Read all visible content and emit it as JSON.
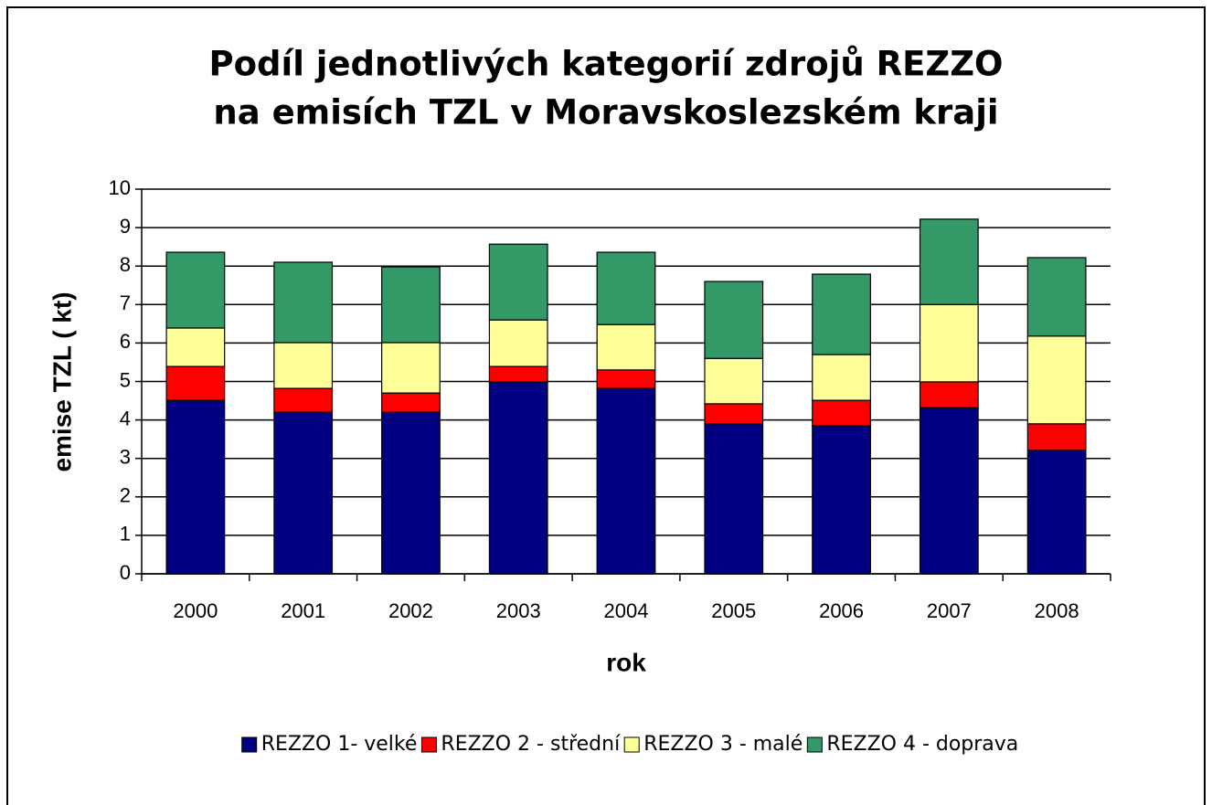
{
  "chart_data": {
    "type": "stacked_bar",
    "title": [
      "Podíl jednotlivých kategorií zdrojů REZZO",
      "na emisích TZL v Moravskoslezském kraji"
    ],
    "x_label": "rok",
    "y_label": "emise TZL  ( kt)",
    "categories": [
      "2000",
      "2001",
      "2002",
      "2003",
      "2004",
      "2005",
      "2006",
      "2007",
      "2008"
    ],
    "series": [
      {
        "name": "REZZO 1- velké",
        "color": "#000080",
        "values": [
          4.51,
          4.2,
          4.2,
          4.99,
          4.82,
          3.9,
          3.85,
          4.32,
          3.21
        ]
      },
      {
        "name": "REZZO 2 - střední",
        "color": "#ff0000",
        "values": [
          0.88,
          0.62,
          0.5,
          0.4,
          0.48,
          0.52,
          0.66,
          0.67,
          0.69
        ]
      },
      {
        "name": "REZZO 3 - malé",
        "color": "#ffff99",
        "values": [
          1.0,
          1.19,
          1.31,
          1.21,
          1.18,
          1.18,
          1.19,
          2.01,
          2.28
        ]
      },
      {
        "name": "REZZO 4 - doprava",
        "color": "#339966",
        "values": [
          1.97,
          2.09,
          1.97,
          1.97,
          1.88,
          2.0,
          2.09,
          2.22,
          2.04
        ]
      }
    ],
    "ylim": [
      0,
      10
    ],
    "yticks": [
      0,
      1,
      2,
      3,
      4,
      5,
      6,
      7,
      8,
      9,
      10
    ],
    "grid": true,
    "legend": "bottom"
  }
}
